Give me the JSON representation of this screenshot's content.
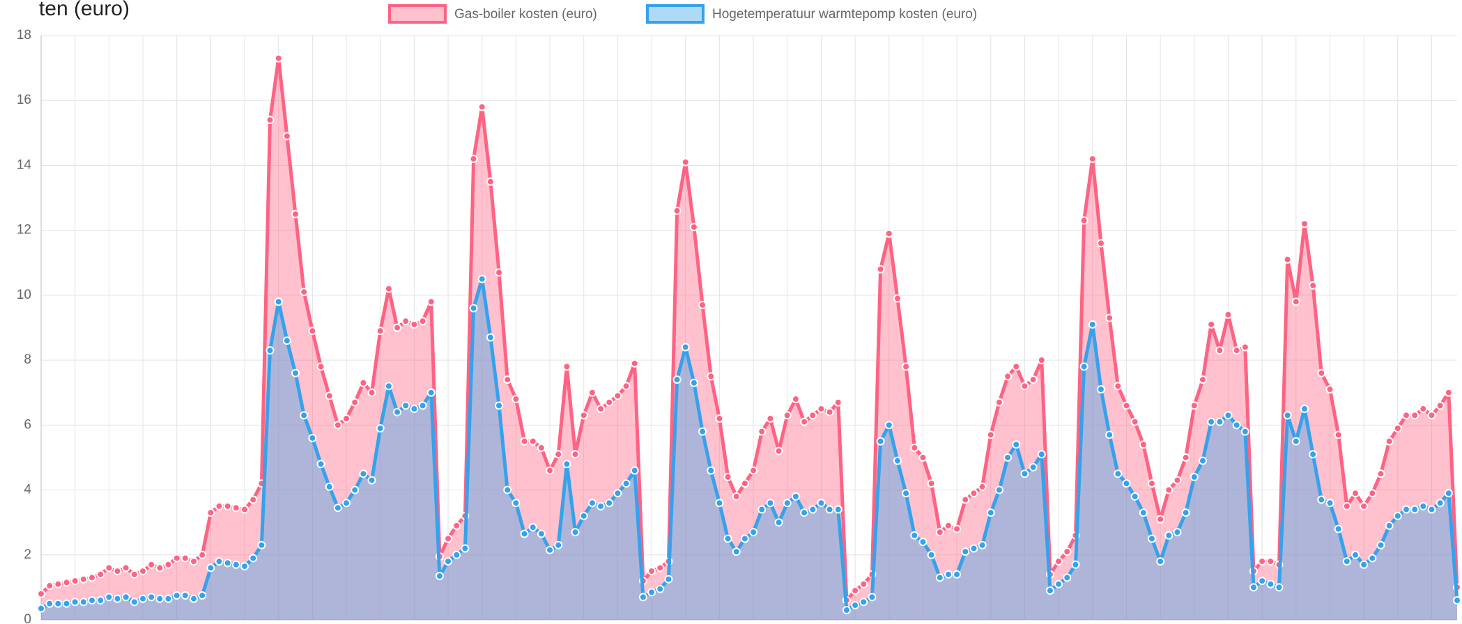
{
  "chart_data": {
    "type": "area",
    "y_label": "ten (euro)",
    "legend": "top",
    "grid": true,
    "ylim": [
      0,
      18
    ],
    "yticks": [
      0,
      2,
      4,
      6,
      8,
      10,
      12,
      14,
      16,
      18
    ],
    "series": [
      {
        "name": "Gas-boiler kosten (euro)",
        "color": "#ff6384",
        "fill": "rgba(255,99,132,0.4)",
        "values": [
          0.8,
          1.05,
          1.1,
          1.15,
          1.2,
          1.25,
          1.3,
          1.4,
          1.6,
          1.5,
          1.6,
          1.4,
          1.5,
          1.7,
          1.6,
          1.7,
          1.9,
          1.9,
          1.8,
          2.0,
          3.3,
          3.5,
          3.5,
          3.45,
          3.4,
          3.7,
          4.2,
          15.4,
          17.3,
          14.9,
          12.5,
          10.1,
          8.9,
          7.8,
          6.9,
          6.0,
          6.2,
          6.7,
          7.3,
          7.0,
          8.9,
          10.2,
          9.0,
          9.2,
          9.1,
          9.2,
          9.8,
          1.95,
          2.5,
          2.9,
          3.2,
          14.2,
          15.8,
          13.5,
          10.7,
          7.4,
          6.8,
          5.5,
          5.5,
          5.3,
          4.6,
          5.1,
          7.8,
          5.1,
          6.3,
          7.0,
          6.5,
          6.7,
          6.9,
          7.2,
          7.9,
          1.2,
          1.5,
          1.6,
          1.8,
          12.6,
          14.1,
          12.1,
          9.7,
          7.5,
          6.2,
          4.4,
          3.8,
          4.2,
          4.6,
          5.8,
          6.2,
          5.2,
          6.3,
          6.8,
          6.1,
          6.3,
          6.5,
          6.4,
          6.7,
          0.6,
          0.9,
          1.1,
          1.4,
          10.8,
          11.9,
          9.9,
          7.8,
          5.3,
          5.0,
          4.2,
          2.7,
          2.9,
          2.8,
          3.7,
          3.9,
          4.1,
          5.7,
          6.7,
          7.5,
          7.8,
          7.2,
          7.4,
          8.0,
          1.4,
          1.8,
          2.1,
          2.6,
          12.3,
          14.2,
          11.6,
          9.3,
          7.2,
          6.6,
          6.1,
          5.4,
          4.2,
          3.1,
          4.0,
          4.3,
          5.0,
          6.6,
          7.4,
          9.1,
          8.3,
          9.4,
          8.3,
          8.4,
          1.5,
          1.8,
          1.8,
          1.7,
          11.1,
          9.8,
          12.2,
          10.3,
          7.6,
          7.1,
          5.7,
          3.5,
          3.9,
          3.5,
          3.9,
          4.5,
          5.5,
          5.9,
          6.3,
          6.3,
          6.5,
          6.3,
          6.6,
          7.0,
          1.0
        ]
      },
      {
        "name": "Hogetemperatuur warmtepomp kosten (euro)",
        "color": "#36a2eb",
        "fill": "rgba(54,162,235,0.4)",
        "values": [
          0.35,
          0.5,
          0.5,
          0.5,
          0.55,
          0.55,
          0.6,
          0.6,
          0.7,
          0.65,
          0.7,
          0.55,
          0.65,
          0.7,
          0.65,
          0.65,
          0.75,
          0.75,
          0.65,
          0.75,
          1.6,
          1.8,
          1.75,
          1.7,
          1.65,
          1.9,
          2.3,
          8.3,
          9.8,
          8.6,
          7.6,
          6.3,
          5.6,
          4.8,
          4.1,
          3.45,
          3.6,
          4.0,
          4.5,
          4.3,
          5.9,
          7.2,
          6.4,
          6.6,
          6.5,
          6.6,
          7.0,
          1.35,
          1.8,
          2.0,
          2.2,
          9.6,
          10.5,
          8.7,
          6.6,
          4.0,
          3.6,
          2.65,
          2.85,
          2.65,
          2.15,
          2.3,
          4.8,
          2.7,
          3.2,
          3.6,
          3.5,
          3.6,
          3.9,
          4.2,
          4.6,
          0.7,
          0.85,
          0.95,
          1.25,
          7.4,
          8.4,
          7.3,
          5.8,
          4.6,
          3.6,
          2.5,
          2.1,
          2.5,
          2.7,
          3.4,
          3.6,
          3.0,
          3.6,
          3.8,
          3.3,
          3.4,
          3.6,
          3.4,
          3.4,
          0.3,
          0.45,
          0.55,
          0.7,
          5.5,
          6.0,
          4.9,
          3.9,
          2.6,
          2.4,
          2.0,
          1.3,
          1.4,
          1.4,
          2.1,
          2.2,
          2.3,
          3.3,
          4.0,
          5.0,
          5.4,
          4.5,
          4.7,
          5.1,
          0.9,
          1.1,
          1.3,
          1.7,
          7.8,
          9.1,
          7.1,
          5.7,
          4.5,
          4.2,
          3.8,
          3.3,
          2.5,
          1.8,
          2.6,
          2.7,
          3.3,
          4.4,
          4.9,
          6.1,
          6.1,
          6.3,
          6.0,
          5.8,
          1.0,
          1.2,
          1.1,
          1.0,
          6.3,
          5.5,
          6.5,
          5.1,
          3.7,
          3.6,
          2.8,
          1.8,
          2.0,
          1.7,
          1.9,
          2.3,
          2.9,
          3.2,
          3.4,
          3.4,
          3.5,
          3.4,
          3.6,
          3.9,
          0.6
        ]
      }
    ]
  }
}
